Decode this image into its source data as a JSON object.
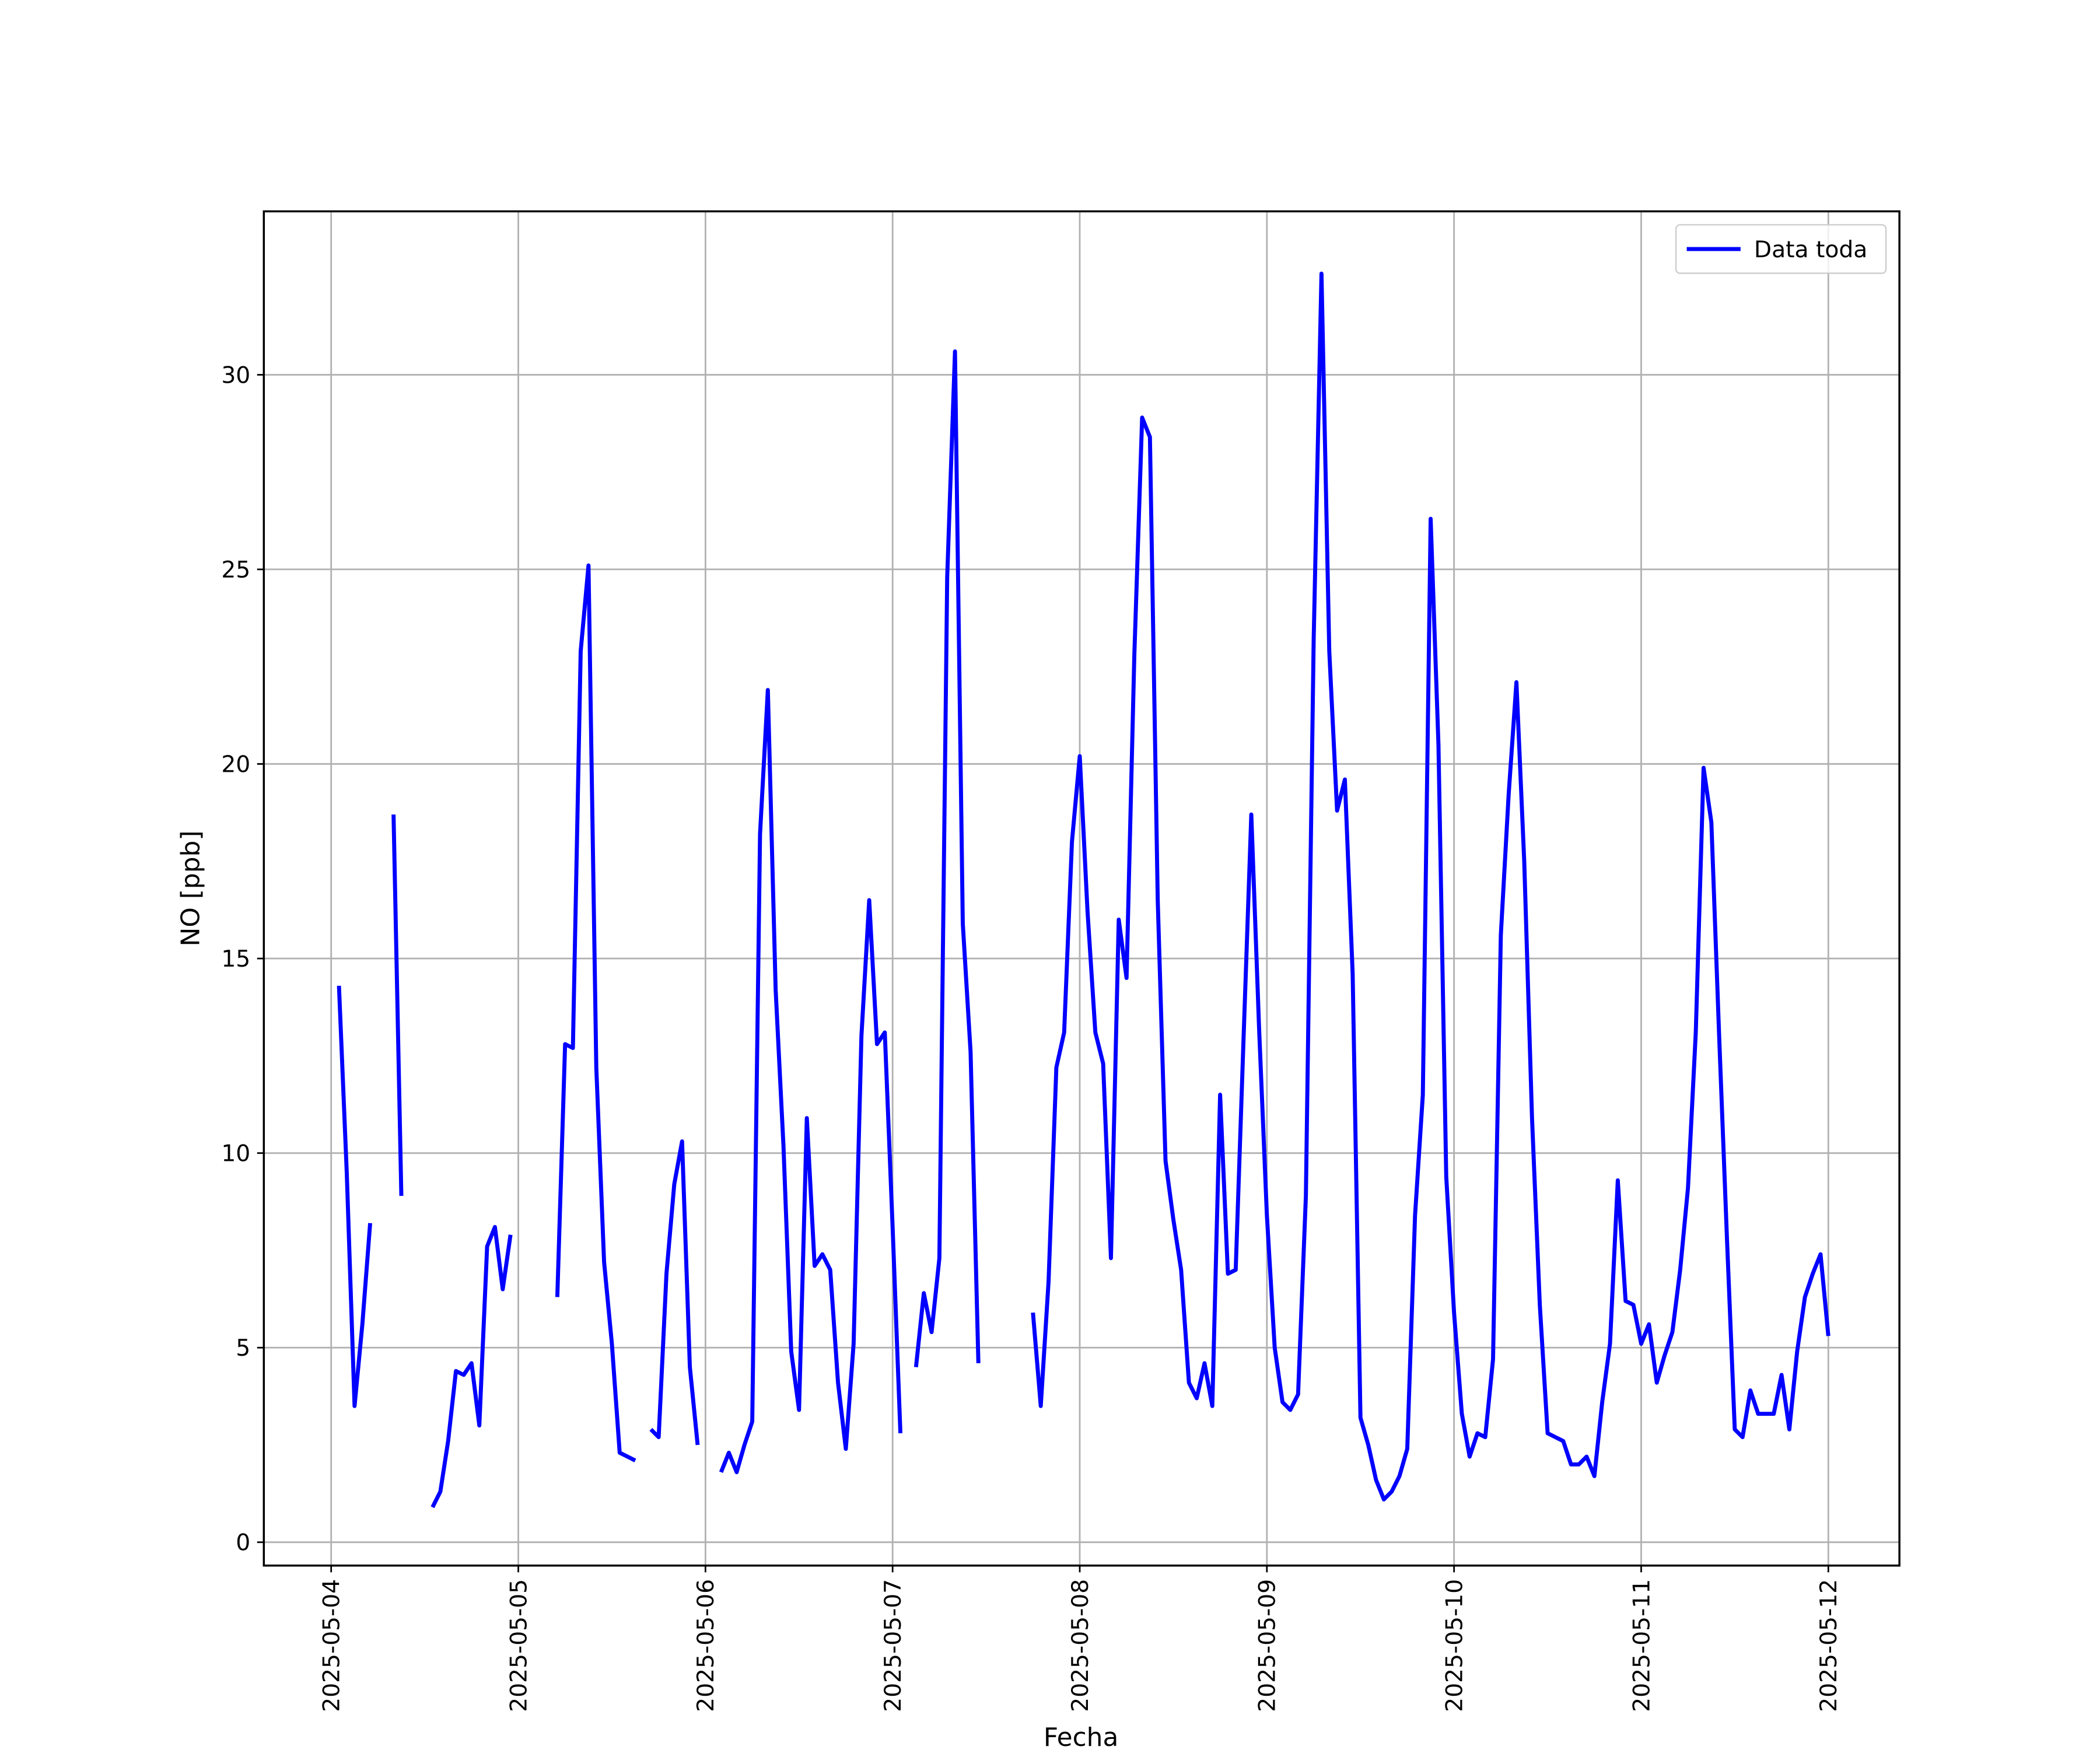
{
  "chart_data": {
    "type": "line",
    "ylabel": "NO [ppb]",
    "xlabel": "Fecha",
    "x": [
      "2025-05-04 01:00",
      "2025-05-04 02:00",
      "2025-05-04 03:00",
      "2025-05-04 04:00",
      "2025-05-04 05:00",
      "2025-05-04 06:00",
      "2025-05-04 07:00",
      "2025-05-04 08:00",
      "2025-05-04 09:00",
      "2025-05-04 10:00",
      "2025-05-04 11:00",
      "2025-05-04 12:00",
      "2025-05-04 13:00",
      "2025-05-04 14:00",
      "2025-05-04 15:00",
      "2025-05-04 16:00",
      "2025-05-04 17:00",
      "2025-05-04 18:00",
      "2025-05-04 19:00",
      "2025-05-04 20:00",
      "2025-05-04 21:00",
      "2025-05-04 22:00",
      "2025-05-04 23:00",
      "2025-05-05 00:00",
      "2025-05-05 01:00",
      "2025-05-05 02:00",
      "2025-05-05 03:00",
      "2025-05-05 04:00",
      "2025-05-05 05:00",
      "2025-05-05 06:00",
      "2025-05-05 07:00",
      "2025-05-05 08:00",
      "2025-05-05 09:00",
      "2025-05-05 10:00",
      "2025-05-05 11:00",
      "2025-05-05 12:00",
      "2025-05-05 13:00",
      "2025-05-05 14:00",
      "2025-05-05 15:00",
      "2025-05-05 16:00",
      "2025-05-05 17:00",
      "2025-05-05 18:00",
      "2025-05-05 19:00",
      "2025-05-05 20:00",
      "2025-05-05 21:00",
      "2025-05-05 22:00",
      "2025-05-05 23:00",
      "2025-05-06 00:00",
      "2025-05-06 01:00",
      "2025-05-06 02:00",
      "2025-05-06 03:00",
      "2025-05-06 04:00",
      "2025-05-06 05:00",
      "2025-05-06 06:00",
      "2025-05-06 07:00",
      "2025-05-06 08:00",
      "2025-05-06 09:00",
      "2025-05-06 10:00",
      "2025-05-06 11:00",
      "2025-05-06 12:00",
      "2025-05-06 13:00",
      "2025-05-06 14:00",
      "2025-05-06 15:00",
      "2025-05-06 16:00",
      "2025-05-06 17:00",
      "2025-05-06 18:00",
      "2025-05-06 19:00",
      "2025-05-06 20:00",
      "2025-05-06 21:00",
      "2025-05-06 22:00",
      "2025-05-06 23:00",
      "2025-05-07 00:00",
      "2025-05-07 01:00",
      "2025-05-07 02:00",
      "2025-05-07 03:00",
      "2025-05-07 04:00",
      "2025-05-07 05:00",
      "2025-05-07 06:00",
      "2025-05-07 07:00",
      "2025-05-07 08:00",
      "2025-05-07 09:00",
      "2025-05-07 10:00",
      "2025-05-07 11:00",
      "2025-05-07 12:00",
      "2025-05-07 13:00",
      "2025-05-07 14:00",
      "2025-05-07 15:00",
      "2025-05-07 16:00",
      "2025-05-07 17:00",
      "2025-05-07 18:00",
      "2025-05-07 19:00",
      "2025-05-07 20:00",
      "2025-05-07 21:00",
      "2025-05-07 22:00",
      "2025-05-07 23:00",
      "2025-05-08 00:00",
      "2025-05-08 01:00",
      "2025-05-08 02:00",
      "2025-05-08 03:00",
      "2025-05-08 04:00",
      "2025-05-08 05:00",
      "2025-05-08 06:00",
      "2025-05-08 07:00",
      "2025-05-08 08:00",
      "2025-05-08 09:00",
      "2025-05-08 10:00",
      "2025-05-08 11:00",
      "2025-05-08 12:00",
      "2025-05-08 13:00",
      "2025-05-08 14:00",
      "2025-05-08 15:00",
      "2025-05-08 16:00",
      "2025-05-08 17:00",
      "2025-05-08 18:00",
      "2025-05-08 19:00",
      "2025-05-08 20:00",
      "2025-05-08 21:00",
      "2025-05-08 22:00",
      "2025-05-08 23:00",
      "2025-05-09 00:00",
      "2025-05-09 01:00",
      "2025-05-09 02:00",
      "2025-05-09 03:00",
      "2025-05-09 04:00",
      "2025-05-09 05:00",
      "2025-05-09 06:00",
      "2025-05-09 07:00",
      "2025-05-09 08:00",
      "2025-05-09 09:00",
      "2025-05-09 10:00",
      "2025-05-09 11:00",
      "2025-05-09 12:00",
      "2025-05-09 13:00",
      "2025-05-09 14:00",
      "2025-05-09 15:00",
      "2025-05-09 16:00",
      "2025-05-09 17:00",
      "2025-05-09 18:00",
      "2025-05-09 19:00",
      "2025-05-09 20:00",
      "2025-05-09 21:00",
      "2025-05-09 22:00",
      "2025-05-09 23:00",
      "2025-05-10 00:00",
      "2025-05-10 01:00",
      "2025-05-10 02:00",
      "2025-05-10 03:00",
      "2025-05-10 04:00",
      "2025-05-10 05:00",
      "2025-05-10 06:00",
      "2025-05-10 07:00",
      "2025-05-10 08:00",
      "2025-05-10 09:00",
      "2025-05-10 10:00",
      "2025-05-10 11:00",
      "2025-05-10 12:00",
      "2025-05-10 13:00",
      "2025-05-10 14:00",
      "2025-05-10 15:00",
      "2025-05-10 16:00",
      "2025-05-10 17:00",
      "2025-05-10 18:00",
      "2025-05-10 19:00",
      "2025-05-10 20:00",
      "2025-05-10 21:00",
      "2025-05-10 22:00",
      "2025-05-10 23:00",
      "2025-05-11 00:00",
      "2025-05-11 01:00",
      "2025-05-11 02:00",
      "2025-05-11 03:00",
      "2025-05-11 04:00",
      "2025-05-11 05:00",
      "2025-05-11 06:00",
      "2025-05-11 07:00",
      "2025-05-11 08:00",
      "2025-05-11 09:00",
      "2025-05-11 10:00",
      "2025-05-11 11:00",
      "2025-05-11 12:00",
      "2025-05-11 13:00",
      "2025-05-11 14:00",
      "2025-05-11 15:00",
      "2025-05-11 16:00",
      "2025-05-11 17:00",
      "2025-05-11 18:00",
      "2025-05-11 19:00",
      "2025-05-11 20:00",
      "2025-05-11 21:00",
      "2025-05-11 22:00",
      "2025-05-11 23:00",
      "2025-05-12 00:00"
    ],
    "series": [
      {
        "name": "Data toda",
        "color": "#0000ff",
        "values": [
          14.3,
          9.5,
          3.5,
          5.6,
          8.2,
          null,
          null,
          18.7,
          8.9,
          null,
          null,
          null,
          0.9,
          1.3,
          2.6,
          4.4,
          4.3,
          4.6,
          3.0,
          7.6,
          8.1,
          6.5,
          7.9,
          null,
          null,
          null,
          null,
          null,
          6.3,
          12.8,
          12.7,
          22.9,
          25.1,
          12.2,
          7.2,
          5.1,
          2.3,
          2.2,
          2.1,
          null,
          2.9,
          2.7,
          6.9,
          9.2,
          10.3,
          4.5,
          2.5,
          null,
          null,
          1.8,
          2.3,
          1.8,
          2.5,
          3.1,
          18.2,
          21.9,
          14.2,
          10.2,
          4.9,
          3.4,
          10.9,
          7.1,
          7.4,
          7.0,
          4.1,
          2.4,
          5.1,
          13.0,
          16.5,
          12.8,
          13.1,
          8.1,
          2.8,
          null,
          4.5,
          6.4,
          5.4,
          7.3,
          24.8,
          30.6,
          15.9,
          12.6,
          4.6,
          null,
          null,
          null,
          null,
          null,
          null,
          5.9,
          3.5,
          6.7,
          12.2,
          13.1,
          18.0,
          20.2,
          16.2,
          13.1,
          12.3,
          7.3,
          16.0,
          14.5,
          22.8,
          28.9,
          28.4,
          16.5,
          9.8,
          8.3,
          7.0,
          4.1,
          3.7,
          4.6,
          3.5,
          11.5,
          6.9,
          7.0,
          12.9,
          18.7,
          13.2,
          8.4,
          5.0,
          3.6,
          3.4,
          3.8,
          8.9,
          23.2,
          32.6,
          22.9,
          18.8,
          19.6,
          14.6,
          3.2,
          2.5,
          1.6,
          1.1,
          1.3,
          1.7,
          2.4,
          8.4,
          11.5,
          26.3,
          20.5,
          9.4,
          5.9,
          3.3,
          2.2,
          2.8,
          2.7,
          4.7,
          15.6,
          19.2,
          22.1,
          17.5,
          10.9,
          6.1,
          2.8,
          2.7,
          2.6,
          2.0,
          2.0,
          2.2,
          1.7,
          3.6,
          5.1,
          9.3,
          6.2,
          6.1,
          5.1,
          5.6,
          4.1,
          4.8,
          5.4,
          7.0,
          9.1,
          13.1,
          19.9,
          18.5,
          13.0,
          7.8,
          2.9,
          2.7,
          3.9,
          3.3,
          3.3,
          3.3,
          4.3,
          2.9,
          4.9,
          6.3,
          6.9,
          7.4,
          5.3
        ]
      }
    ],
    "xlim": [
      "2025-05-03 15:22",
      "2025-05-12 09:07"
    ],
    "xticks": [
      "2025-05-04",
      "2025-05-05",
      "2025-05-06",
      "2025-05-07",
      "2025-05-08",
      "2025-05-09",
      "2025-05-10",
      "2025-05-11",
      "2025-05-12"
    ],
    "ylim": [
      -0.6,
      34.2
    ],
    "yticks": [
      0,
      5,
      10,
      15,
      20,
      25,
      30
    ],
    "grid": true,
    "legend": "upper right"
  }
}
